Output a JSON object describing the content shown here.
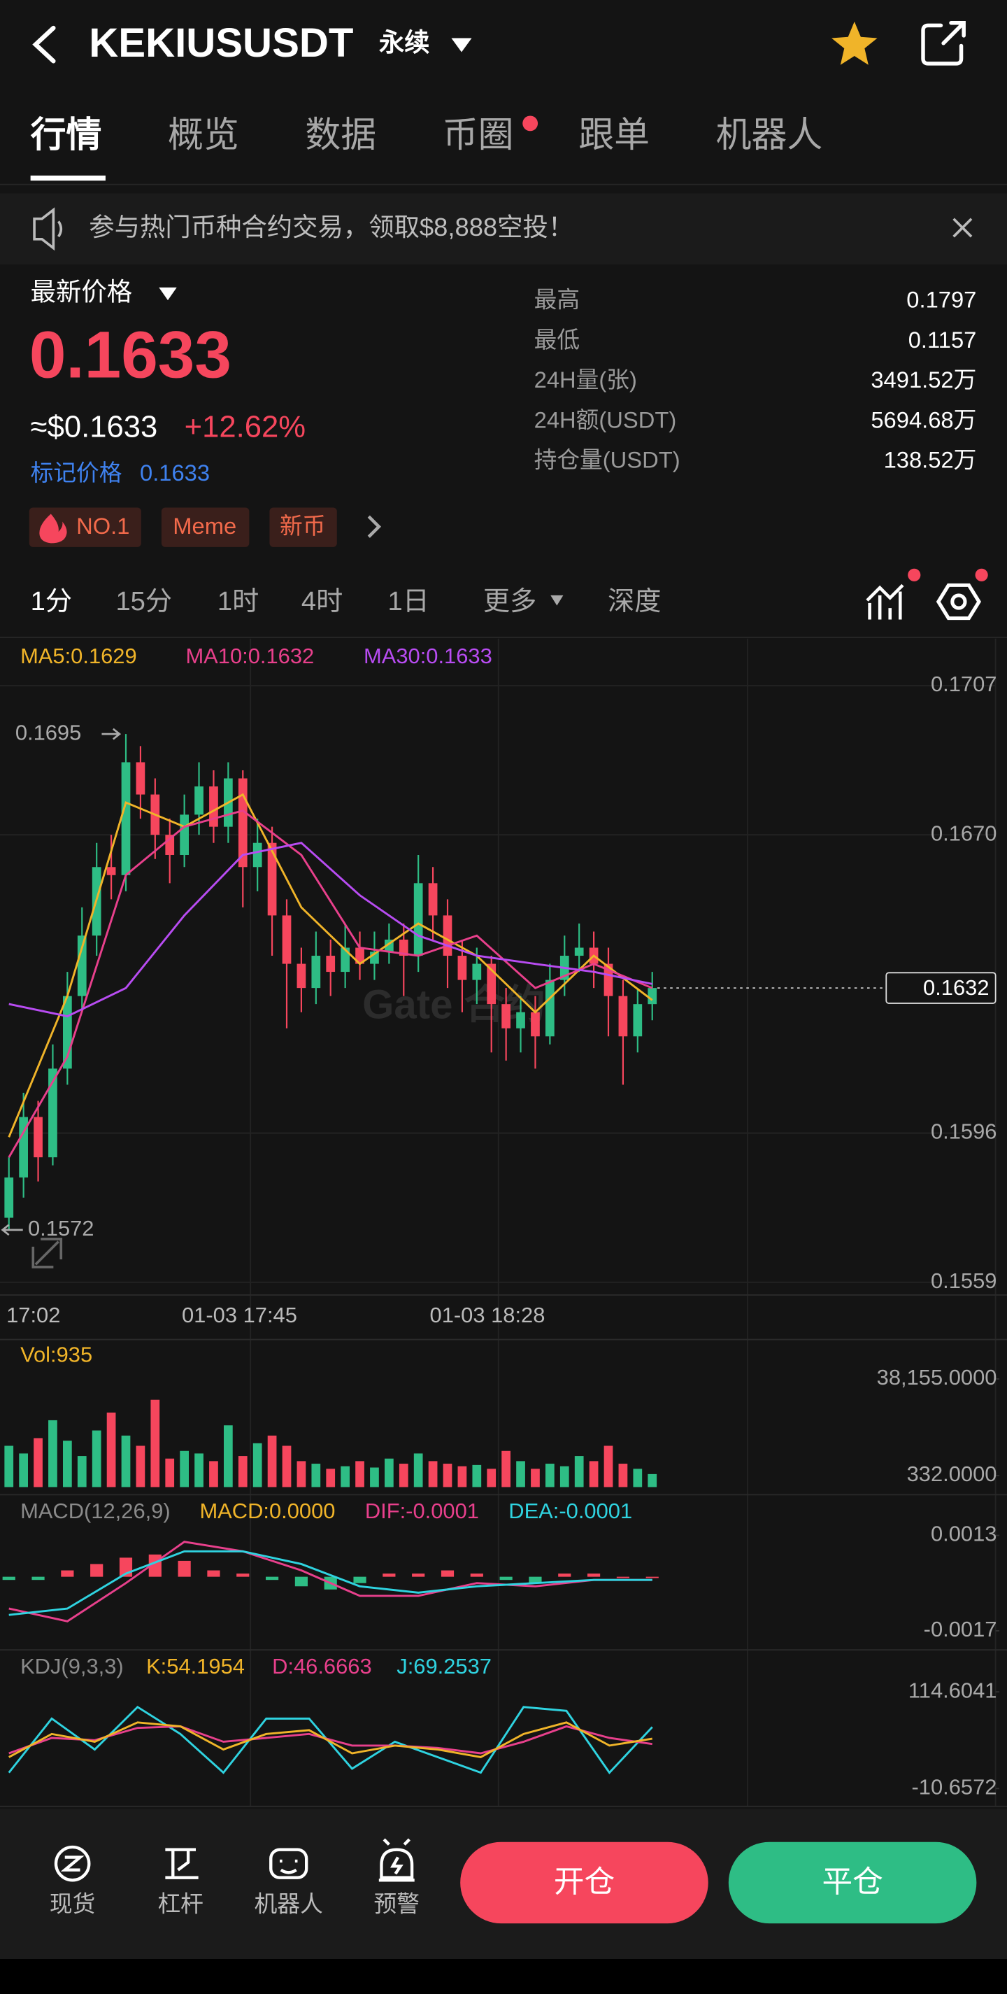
{
  "header": {
    "title": "KEKIUSUSDT",
    "contract": "永续"
  },
  "tabs": [
    "行情",
    "概览",
    "数据",
    "币圈",
    "跟单",
    "机器人"
  ],
  "banner": "参与热门币种合约交易，领取$8,888空投！",
  "price": {
    "label": "最新价格",
    "last": "0.1633",
    "usd": "≈$0.1633",
    "change": "+12.62%",
    "mark_label": "标记价格",
    "mark": "0.1633"
  },
  "tags": [
    "NO.1",
    "Meme",
    "新币"
  ],
  "stats": [
    {
      "label": "最高",
      "value": "0.1797"
    },
    {
      "label": "最低",
      "value": "0.1157"
    },
    {
      "label": "24H量(张)",
      "value": "3491.52万"
    },
    {
      "label": "24H额(USDT)",
      "value": "5694.68万"
    },
    {
      "label": "持仓量(USDT)",
      "value": "138.52万"
    }
  ],
  "timeframes": [
    "1分",
    "15分",
    "1时",
    "4时",
    "1日",
    "更多",
    "深度"
  ],
  "chart_data": {
    "type": "candlestick",
    "ma": [
      {
        "label": "MA5:0.1629",
        "color": "#f0b429",
        "values": [
          0.1595,
          0.163,
          0.1678,
          0.1672,
          0.168,
          0.1652,
          0.1638,
          0.1648,
          0.164,
          0.1626,
          0.164,
          0.1629
        ]
      },
      {
        "label": "MA10:0.1632",
        "color": "#e8408c",
        "values": [
          0.159,
          0.1615,
          0.166,
          0.1672,
          0.1676,
          0.1665,
          0.1642,
          0.164,
          0.1645,
          0.1632,
          0.1638,
          0.1632
        ]
      },
      {
        "label": "MA30:0.1633",
        "color": "#b84cf2",
        "values": [
          0.1628,
          0.1625,
          0.1632,
          0.165,
          0.1665,
          0.1668,
          0.1655,
          0.1645,
          0.164,
          0.1638,
          0.1636,
          0.1633
        ]
      }
    ],
    "ylim": [
      0.1559,
      0.1707
    ],
    "yticks": [
      0.1707,
      {
        "value": 0.167,
        "label": "0.1670"
      },
      0.1596,
      0.1559
    ],
    "xlabels": [
      "17:02",
      "01-03 17:45",
      "01-03 18:28"
    ],
    "last_price": 0.1632,
    "high": 0.1695,
    "low": 0.1572,
    "watermark": "Gate 合约",
    "candles": [
      [
        0.1575,
        0.159,
        0.1572,
        0.1585
      ],
      [
        0.1585,
        0.1606,
        0.158,
        0.16
      ],
      [
        0.16,
        0.1604,
        0.1584,
        0.159
      ],
      [
        0.159,
        0.1618,
        0.1588,
        0.1612
      ],
      [
        0.1612,
        0.1636,
        0.1608,
        0.163
      ],
      [
        0.163,
        0.1652,
        0.1626,
        0.1645
      ],
      [
        0.1645,
        0.1668,
        0.164,
        0.1662
      ],
      [
        0.1662,
        0.167,
        0.1654,
        0.166
      ],
      [
        0.166,
        0.1695,
        0.1656,
        0.1688
      ],
      [
        0.1688,
        0.1692,
        0.1674,
        0.168
      ],
      [
        0.168,
        0.1684,
        0.1664,
        0.167
      ],
      [
        0.167,
        0.1674,
        0.1658,
        0.1665
      ],
      [
        0.1665,
        0.168,
        0.1662,
        0.1675
      ],
      [
        0.1675,
        0.1688,
        0.167,
        0.1682
      ],
      [
        0.1682,
        0.1686,
        0.1668,
        0.1672
      ],
      [
        0.1672,
        0.1688,
        0.1668,
        0.1684
      ],
      [
        0.1684,
        0.1686,
        0.1652,
        0.1662
      ],
      [
        0.1662,
        0.1674,
        0.1656,
        0.1668
      ],
      [
        0.1668,
        0.1672,
        0.164,
        0.165
      ],
      [
        0.165,
        0.1654,
        0.1622,
        0.1638
      ],
      [
        0.1638,
        0.1642,
        0.1626,
        0.1632
      ],
      [
        0.1632,
        0.1646,
        0.1628,
        0.164
      ],
      [
        0.164,
        0.1644,
        0.163,
        0.1636
      ],
      [
        0.1636,
        0.1648,
        0.1632,
        0.1642
      ],
      [
        0.1642,
        0.1646,
        0.1634,
        0.1638
      ],
      [
        0.1638,
        0.1646,
        0.1634,
        0.1641
      ],
      [
        0.1641,
        0.1648,
        0.1638,
        0.1644
      ],
      [
        0.1644,
        0.1648,
        0.163,
        0.164
      ],
      [
        0.164,
        0.1665,
        0.1636,
        0.1658
      ],
      [
        0.1658,
        0.1662,
        0.1644,
        0.165
      ],
      [
        0.165,
        0.1654,
        0.1632,
        0.164
      ],
      [
        0.164,
        0.1644,
        0.1626,
        0.1634
      ],
      [
        0.1634,
        0.1642,
        0.1628,
        0.1638
      ],
      [
        0.1638,
        0.164,
        0.1616,
        0.1628
      ],
      [
        0.1628,
        0.1632,
        0.1614,
        0.1622
      ],
      [
        0.1622,
        0.163,
        0.1616,
        0.1626
      ],
      [
        0.1626,
        0.163,
        0.1612,
        0.162
      ],
      [
        0.162,
        0.1638,
        0.1618,
        0.1634
      ],
      [
        0.1634,
        0.1645,
        0.163,
        0.164
      ],
      [
        0.164,
        0.1648,
        0.1636,
        0.1642
      ],
      [
        0.1642,
        0.1646,
        0.1632,
        0.1638
      ],
      [
        0.1638,
        0.1642,
        0.162,
        0.163
      ],
      [
        0.163,
        0.1634,
        0.1608,
        0.162
      ],
      [
        0.162,
        0.1632,
        0.1616,
        0.1628
      ],
      [
        0.1628,
        0.1636,
        0.1624,
        0.1632
      ]
    ],
    "volume": {
      "label": "Vol:935",
      "yticks": [
        {
          "value": 38155,
          "label": "38,155.0000"
        },
        {
          "value": 332,
          "label": "332.0000"
        }
      ],
      "values": [
        12000,
        9000,
        15000,
        22000,
        14000,
        8000,
        18000,
        25000,
        16000,
        12000,
        30000,
        7000,
        10000,
        9000,
        6000,
        20000,
        8000,
        13000,
        16000,
        12000,
        6000,
        5000,
        3000,
        4000,
        6000,
        3500,
        7000,
        5000,
        9000,
        6000,
        5000,
        4000,
        4500,
        3000,
        10000,
        6000,
        3000,
        5000,
        4000,
        8000,
        6000,
        12000,
        5000,
        3000,
        935
      ]
    },
    "macd": {
      "labels": [
        "MACD(12,26,9)",
        "MACD:0.0000",
        "DIF:-0.0001",
        "DEA:-0.0001"
      ],
      "yticks": [
        0.0013,
        -0.0017
      ],
      "hist": [
        -0.0001,
        -0.0001,
        0.0002,
        0.0004,
        0.0006,
        0.0007,
        0.0005,
        0.0002,
        0.0001,
        -0.0001,
        -0.0003,
        -0.0004,
        -0.0002,
        0.0001,
        0.0001,
        0.0002,
        0.0001,
        -0.0001,
        -0.0002,
        0.0001,
        0.0001,
        0,
        0
      ],
      "dif": [
        -0.001,
        -0.0014,
        -0.0002,
        0.0011,
        0.0008,
        0.0002,
        -0.0006,
        -0.0006,
        -0.0002,
        -0.0003,
        -0.0001,
        -0.0001
      ],
      "dea": [
        -0.0012,
        -0.001,
        0.0001,
        0.0008,
        0.0008,
        0.0004,
        -0.0003,
        -0.0005,
        -0.0003,
        -0.0002,
        -0.0001,
        -0.0001
      ]
    },
    "kdj": {
      "labels": [
        "KDJ(9,3,3)",
        "K:54.1954",
        "D:46.6663",
        "J:69.2537"
      ],
      "yticks": [
        114.6041,
        -10.6572
      ],
      "k": [
        30,
        60,
        50,
        75,
        70,
        40,
        60,
        65,
        35,
        45,
        40,
        30,
        60,
        75,
        45,
        54
      ],
      "d": [
        35,
        55,
        52,
        68,
        70,
        50,
        55,
        60,
        45,
        45,
        42,
        35,
        50,
        70,
        55,
        47
      ],
      "j": [
        10,
        80,
        40,
        95,
        60,
        10,
        80,
        80,
        15,
        50,
        30,
        10,
        95,
        90,
        10,
        69
      ]
    }
  },
  "bottom_nav": [
    "现货",
    "杠杆",
    "机器人",
    "预警"
  ],
  "buttons": [
    "开仓",
    "平仓"
  ]
}
